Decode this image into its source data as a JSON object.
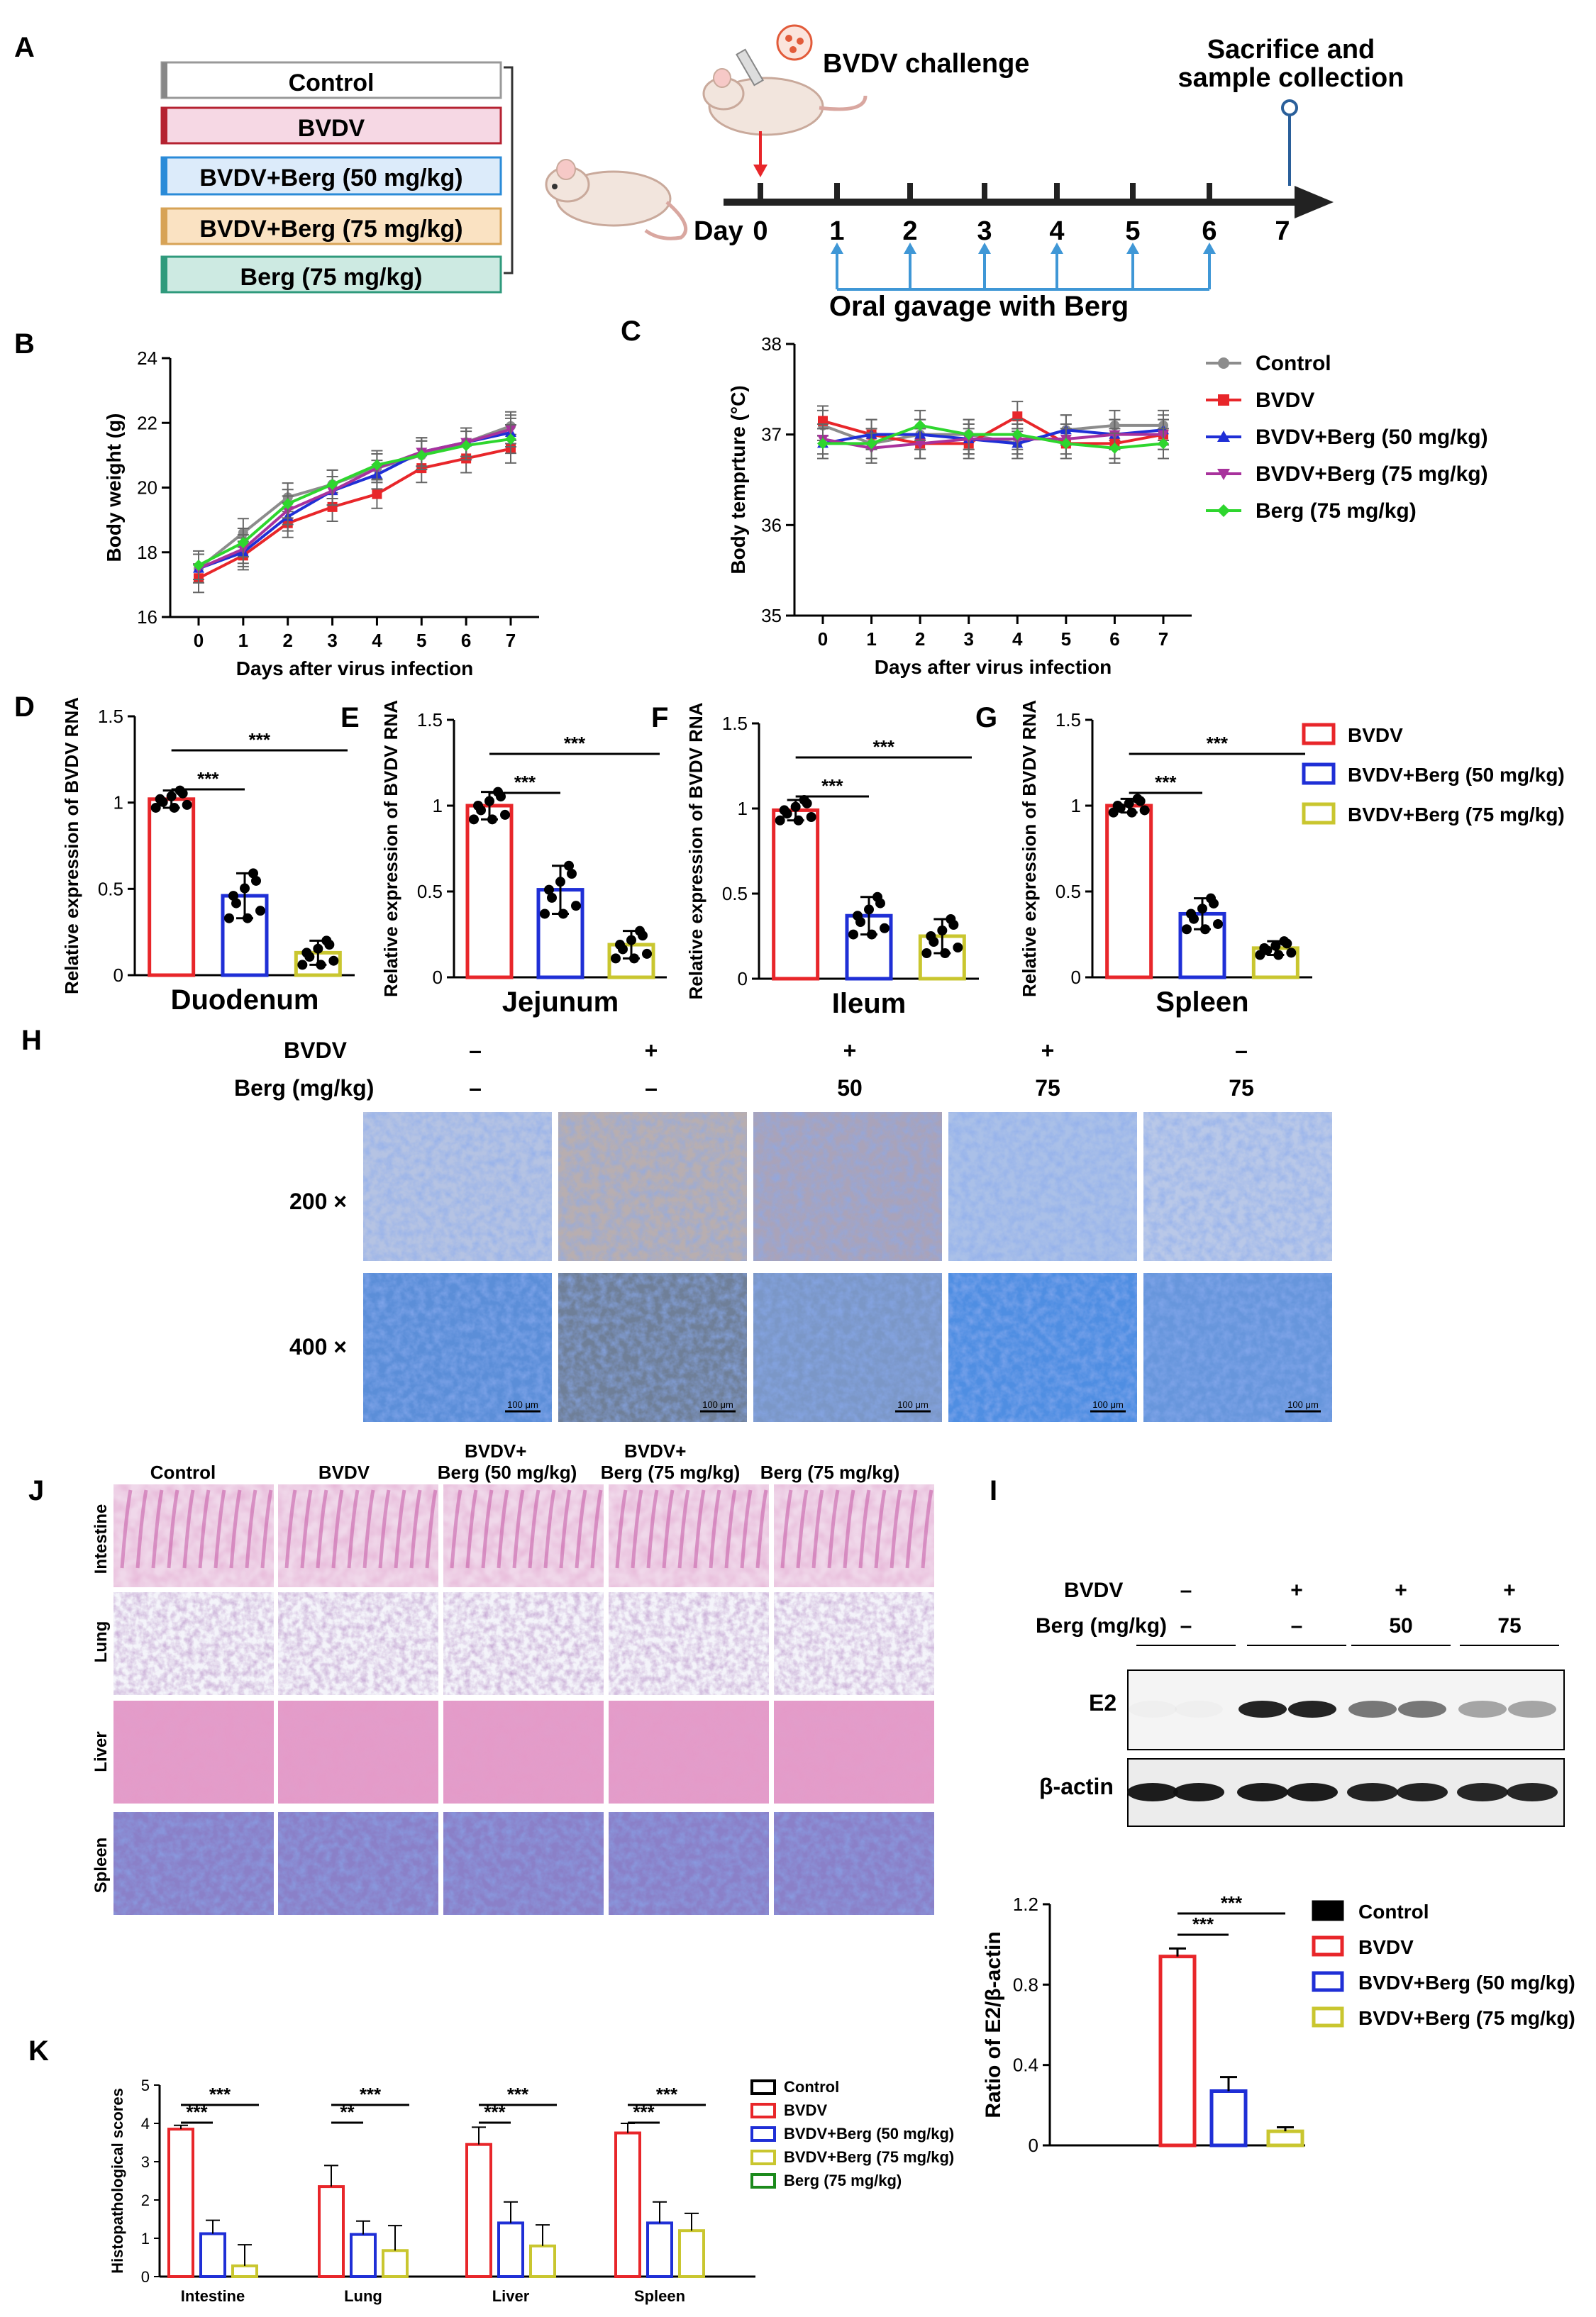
{
  "panel_letters": {
    "a": "A",
    "b": "B",
    "c": "C",
    "d": "D",
    "e": "E",
    "f": "F",
    "g": "G",
    "h": "H",
    "i": "I",
    "j": "J",
    "k": "K"
  },
  "groups": {
    "control": "Control",
    "bvdv": "BVDV",
    "berg50": "BVDV+Berg (50 mg/kg)",
    "berg75": "BVDV+Berg (75 mg/kg)",
    "berg_only": "Berg (75 mg/kg)"
  },
  "colors": {
    "control": "#8c8c8c",
    "bvdv": "#e8262a",
    "berg50": "#1f2fd6",
    "berg75": "#a8329c",
    "berg_only": "#2ed62e",
    "berg75_bar": "#c9c62f",
    "black": "#000000"
  },
  "timeline": {
    "challenge": "BVDV challenge",
    "sacrifice": "Sacrifice and",
    "collection": "sample collection",
    "day_label": "Day",
    "days": [
      "0",
      "1",
      "2",
      "3",
      "4",
      "5",
      "6",
      "7"
    ],
    "gavage": "Oral gavage with Berg"
  },
  "stat_marks": {
    "three": "***",
    "two": "**"
  },
  "h_labels": {
    "row_bvdv": "BVDV",
    "row_berg": "Berg (mg/kg)",
    "bvdv_signs": [
      "–",
      "+",
      "+",
      "+",
      "–"
    ],
    "berg_doses": [
      "–",
      "–",
      "50",
      "75",
      "75"
    ],
    "mag1": "200 ×",
    "mag2": "400 ×",
    "scale": "100 μm"
  },
  "j_labels": {
    "col_control": "Control",
    "col_bvdv": "BVDV",
    "col_50_a": "BVDV+",
    "col_50_b": "Berg (50 mg/kg)",
    "col_75_a": "BVDV+",
    "col_75_b": "Berg (75 mg/kg)",
    "col_berg": "Berg (75 mg/kg)",
    "rows": [
      "Intestine",
      "Lung",
      "Liver",
      "Spleen"
    ]
  },
  "i_blot": {
    "row_bvdv": "BVDV",
    "row_berg": "Berg (mg/kg)",
    "bvdv_signs": [
      "–",
      "+",
      "+",
      "+"
    ],
    "berg_doses": [
      "–",
      "–",
      "50",
      "75"
    ],
    "band1": "E2",
    "band2": "β-actin",
    "band1_intensity": [
      0.02,
      0.92,
      0.55,
      0.35
    ],
    "band2_intensity": [
      0.95,
      0.95,
      0.92,
      0.9
    ]
  },
  "chart_data": [
    {
      "id": "B",
      "type": "line",
      "title": "",
      "xlabel": "Days after virus infection",
      "ylabel": "Body weight (g)",
      "x": [
        0,
        1,
        2,
        3,
        4,
        5,
        6,
        7
      ],
      "ylim": [
        16,
        24
      ],
      "yticks": [
        "16",
        "18",
        "20",
        "22",
        "24"
      ],
      "xticks": [
        "0",
        "1",
        "2",
        "3",
        "4",
        "5",
        "6",
        "7"
      ],
      "series": [
        {
          "name": "Control",
          "values": [
            17.5,
            18.6,
            19.7,
            20.1,
            20.6,
            21.0,
            21.4,
            21.9
          ]
        },
        {
          "name": "BVDV",
          "values": [
            17.2,
            17.9,
            18.9,
            19.4,
            19.8,
            20.6,
            20.9,
            21.2
          ]
        },
        {
          "name": "BVDV+Berg (50 mg/kg)",
          "values": [
            17.5,
            18.0,
            19.1,
            19.9,
            20.4,
            21.1,
            21.4,
            21.7
          ]
        },
        {
          "name": "BVDV+Berg (75 mg/kg)",
          "values": [
            17.5,
            18.1,
            19.3,
            19.9,
            20.6,
            21.1,
            21.4,
            21.8
          ]
        },
        {
          "name": "Berg (75 mg/kg)",
          "values": [
            17.6,
            18.3,
            19.5,
            20.1,
            20.7,
            21.0,
            21.3,
            21.5
          ]
        }
      ]
    },
    {
      "id": "C",
      "type": "line",
      "title": "",
      "xlabel": "Days after virus infection",
      "ylabel": "Body temprture (°C)",
      "x": [
        0,
        1,
        2,
        3,
        4,
        5,
        6,
        7
      ],
      "ylim": [
        35,
        38
      ],
      "yticks": [
        "35",
        "36",
        "37",
        "38"
      ],
      "xticks": [
        "0",
        "1",
        "2",
        "3",
        "4",
        "5",
        "6",
        "7"
      ],
      "series": [
        {
          "name": "Control",
          "values": [
            37.1,
            36.9,
            37.0,
            37.0,
            36.9,
            37.05,
            37.1,
            37.1
          ]
        },
        {
          "name": "BVDV",
          "values": [
            37.15,
            37.0,
            36.9,
            36.9,
            37.2,
            36.9,
            36.9,
            37.0
          ]
        },
        {
          "name": "BVDV+Berg (50 mg/kg)",
          "values": [
            36.9,
            37.0,
            37.0,
            36.95,
            36.9,
            37.05,
            37.0,
            37.05
          ]
        },
        {
          "name": "BVDV+Berg (75 mg/kg)",
          "values": [
            36.95,
            36.85,
            36.9,
            36.95,
            36.95,
            36.95,
            37.0,
            37.0
          ]
        },
        {
          "name": "Berg (75 mg/kg)",
          "values": [
            36.9,
            36.9,
            37.1,
            37.0,
            37.0,
            36.9,
            36.85,
            36.9
          ]
        }
      ]
    },
    {
      "id": "D",
      "type": "bar",
      "title": "Duodenum",
      "ylabel": "Relative expression of BVDV RNA",
      "ylim": [
        0,
        1.5
      ],
      "yticks": [
        "0",
        "0.5",
        "1",
        "1.5"
      ],
      "categories": [
        "BVDV",
        "BVDV+Berg (50 mg/kg)",
        "BVDV+Berg (75 mg/kg)"
      ],
      "values": [
        1.02,
        0.46,
        0.13
      ],
      "errors": [
        0.05,
        0.13,
        0.07
      ]
    },
    {
      "id": "E",
      "type": "bar",
      "title": "Jejunum",
      "ylabel": "Relative expression of BVDV RNA",
      "ylim": [
        0,
        1.5
      ],
      "yticks": [
        "0",
        "0.5",
        "1",
        "1.5"
      ],
      "categories": [
        "BVDV",
        "BVDV+Berg (50 mg/kg)",
        "BVDV+Berg (75 mg/kg)"
      ],
      "values": [
        1.0,
        0.51,
        0.19
      ],
      "errors": [
        0.08,
        0.14,
        0.08
      ]
    },
    {
      "id": "F",
      "type": "bar",
      "title": "Ileum",
      "ylabel": "Relative expression of BVDV RNA",
      "ylim": [
        0,
        1.5
      ],
      "yticks": [
        "0",
        "0.5",
        "1",
        "1.5"
      ],
      "categories": [
        "BVDV",
        "BVDV+Berg (50 mg/kg)",
        "BVDV+Berg (75 mg/kg)"
      ],
      "values": [
        0.99,
        0.37,
        0.25
      ],
      "errors": [
        0.06,
        0.11,
        0.1
      ]
    },
    {
      "id": "G",
      "type": "bar",
      "title": "Spleen",
      "ylabel": "Relative expression of BVDV RNA",
      "ylim": [
        0,
        1.5
      ],
      "yticks": [
        "0",
        "0.5",
        "1",
        "1.5"
      ],
      "categories": [
        "BVDV",
        "BVDV+Berg (50 mg/kg)",
        "BVDV+Berg (75 mg/kg)"
      ],
      "values": [
        1.0,
        0.37,
        0.17
      ],
      "errors": [
        0.04,
        0.09,
        0.04
      ]
    },
    {
      "id": "I",
      "type": "bar",
      "title": "",
      "ylabel": "Ratio of E2/β-actin",
      "ylim": [
        0,
        1.2
      ],
      "yticks": [
        "0",
        "0.4",
        "0.8",
        "1.2"
      ],
      "categories": [
        "Control",
        "BVDV",
        "BVDV+Berg (50 mg/kg)",
        "BVDV+Berg (75 mg/kg)"
      ],
      "values": [
        0,
        0.94,
        0.27,
        0.07
      ],
      "errors": [
        0,
        0.04,
        0.07,
        0.02
      ]
    },
    {
      "id": "K",
      "type": "bar",
      "title": "",
      "ylabel": "Histopathological scores",
      "ylim": [
        0,
        5
      ],
      "yticks": [
        "0",
        "1",
        "2",
        "3",
        "4",
        "5"
      ],
      "categories": [
        "Intestine",
        "Lung",
        "Liver",
        "Spleen"
      ],
      "series": [
        {
          "name": "BVDV",
          "values": [
            3.85,
            2.35,
            3.45,
            3.75
          ],
          "errors": [
            0.1,
            0.55,
            0.45,
            0.25
          ]
        },
        {
          "name": "BVDV+Berg (50 mg/kg)",
          "values": [
            1.12,
            1.1,
            1.4,
            1.4
          ],
          "errors": [
            0.35,
            0.35,
            0.55,
            0.55
          ]
        },
        {
          "name": "BVDV+Berg (75 mg/kg)",
          "values": [
            0.28,
            0.68,
            0.8,
            1.2
          ],
          "errors": [
            0.55,
            0.65,
            0.55,
            0.45
          ]
        }
      ],
      "legend": [
        "Control",
        "BVDV",
        "BVDV+Berg (50 mg/kg)",
        "BVDV+Berg (75 mg/kg)",
        "Berg (75 mg/kg)"
      ]
    }
  ]
}
